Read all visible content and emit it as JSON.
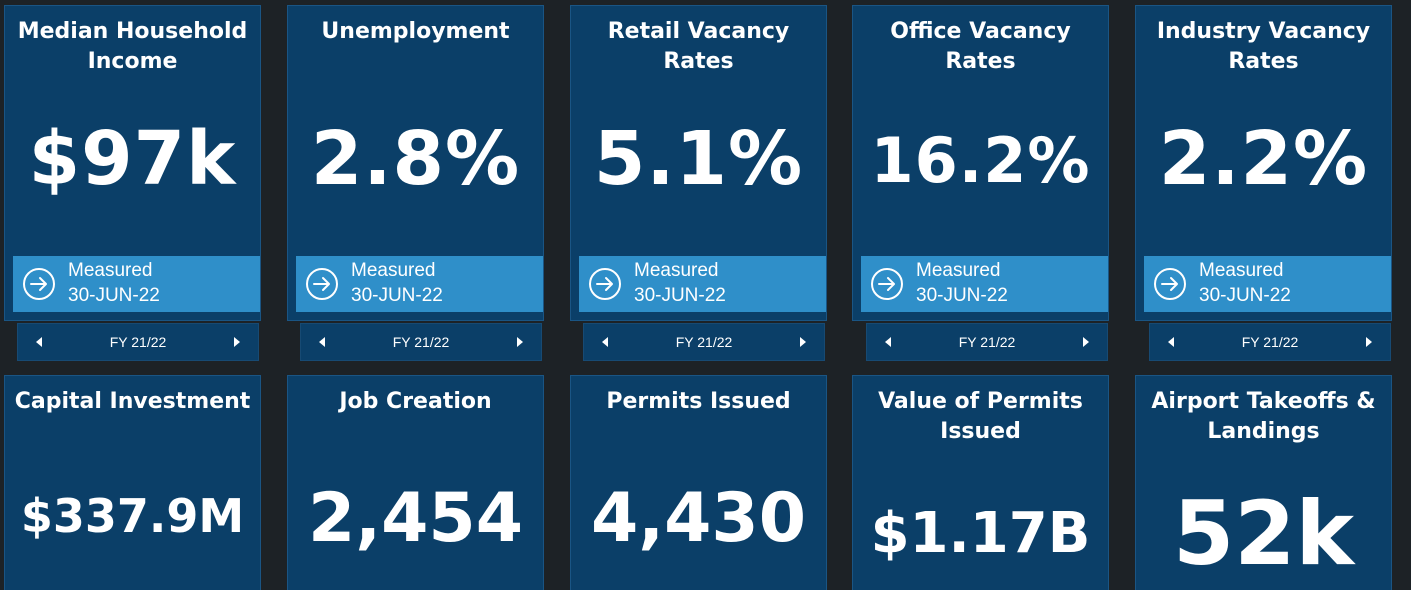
{
  "cards_row1": [
    {
      "title": "Median Household Income",
      "value": "$97k",
      "info_label": "Measured",
      "info_date": "30-JUN-22",
      "period": "FY 21/22"
    },
    {
      "title": "Unemployment",
      "value": "2.8%",
      "info_label": "Measured",
      "info_date": "30-JUN-22",
      "period": "FY 21/22"
    },
    {
      "title": "Retail Vacancy Rates",
      "value": "5.1%",
      "info_label": "Measured",
      "info_date": "30-JUN-22",
      "period": "FY 21/22"
    },
    {
      "title": "Office Vacancy Rates",
      "value": "16.2%",
      "info_label": "Measured",
      "info_date": "30-JUN-22",
      "period": "FY 21/22"
    },
    {
      "title": "Industry Vacancy Rates",
      "value": "2.2%",
      "info_label": "Measured",
      "info_date": "30-JUN-22",
      "period": "FY 21/22"
    }
  ],
  "cards_row2": [
    {
      "title": "Capital Investment",
      "value": "$337.9M"
    },
    {
      "title": "Job Creation",
      "value": "2,454"
    },
    {
      "title": "Permits Issued",
      "value": "4,430"
    },
    {
      "title": "Value of Permits Issued",
      "value": "$1.17B"
    },
    {
      "title": "Airport Takeoffs & Landings",
      "value": "52k"
    }
  ],
  "icons": {
    "info": "arrow-right-circle-icon",
    "prev": "caret-left-icon",
    "next": "caret-right-icon"
  },
  "colors": {
    "background": "#1d2226",
    "card": "#0b3f68",
    "info_banner": "#2f8fc9",
    "text": "#ffffff"
  }
}
